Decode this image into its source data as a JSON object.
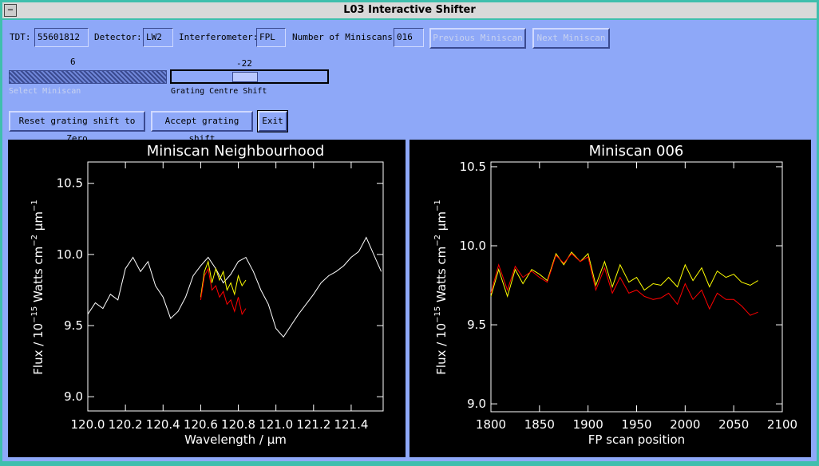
{
  "window": {
    "title": "L03 Interactive Shifter"
  },
  "controls": {
    "tdt_label": "TDT:",
    "tdt_value": "55601812",
    "detector_label": "Detector:",
    "detector_value": "LW2",
    "interferometer_label": "Interferometer:",
    "interferometer_value": "FPL",
    "miniscans_label": "Number of Miniscans:",
    "miniscans_value": "016",
    "previous_button": "Previous Miniscan",
    "next_button": "Next Miniscan",
    "select_slider_value": "6",
    "select_slider_label": "Select Miniscan",
    "shift_slider_value": "-22",
    "shift_slider_label": "Grating Centre Shift",
    "reset_button": "Reset grating shift to Zero",
    "accept_button": "Accept grating shift",
    "exit_button": "Exit"
  },
  "plots": [
    {
      "title": "Miniscan Neighbourhood",
      "x_label": "Wavelength  / μm",
      "y_label_parts": [
        "Flux  / 10",
        "−15",
        " Watts cm",
        "−2",
        " μm",
        "−1"
      ],
      "xlim": [
        120.0,
        121.57
      ],
      "ylim": [
        8.9,
        10.65
      ],
      "xticks": [
        {
          "value": 120.0,
          "label": "120.0"
        },
        120.2,
        120.4,
        120.6,
        120.8,
        {
          "value": 121.0,
          "label": "121.0"
        },
        121.2,
        121.4
      ],
      "yticks": [
        {
          "value": 9.0,
          "label": "9.0"
        },
        9.5,
        {
          "value": 10.0,
          "label": "10.0"
        },
        10.5
      ],
      "series": [
        {
          "color": "#ffffff",
          "x": [
            120.0,
            120.04,
            120.08,
            120.12,
            120.16,
            120.2,
            120.24,
            120.28,
            120.32,
            120.36,
            120.4,
            120.44,
            120.48,
            120.52,
            120.56,
            120.6,
            120.64,
            120.68,
            120.72,
            120.76,
            120.8,
            120.84,
            120.88,
            120.92,
            120.96,
            121.0,
            121.04,
            121.08,
            121.12,
            121.16,
            121.2,
            121.24,
            121.28,
            121.32,
            121.36,
            121.4,
            121.44,
            121.48,
            121.52,
            121.56
          ],
          "values": [
            9.58,
            9.66,
            9.62,
            9.72,
            9.68,
            9.9,
            9.98,
            9.88,
            9.95,
            9.78,
            9.7,
            9.55,
            9.6,
            9.7,
            9.85,
            9.92,
            9.98,
            9.9,
            9.8,
            9.86,
            9.95,
            9.98,
            9.88,
            9.75,
            9.65,
            9.48,
            9.42,
            9.5,
            9.58,
            9.65,
            9.72,
            9.8,
            9.85,
            9.88,
            9.92,
            9.98,
            10.02,
            10.12,
            10.0,
            9.88
          ]
        },
        {
          "color": "#ffff00",
          "x": [
            120.6,
            120.62,
            120.64,
            120.66,
            120.68,
            120.7,
            120.72,
            120.74,
            120.76,
            120.78,
            120.8,
            120.82,
            120.84
          ],
          "values": [
            9.7,
            9.88,
            9.95,
            9.8,
            9.9,
            9.82,
            9.88,
            9.75,
            9.8,
            9.72,
            9.85,
            9.78,
            9.82
          ]
        },
        {
          "color": "#ff0000",
          "x": [
            120.6,
            120.62,
            120.64,
            120.66,
            120.68,
            120.7,
            120.72,
            120.74,
            120.76,
            120.78,
            120.8,
            120.82,
            120.84
          ],
          "values": [
            9.68,
            9.85,
            9.9,
            9.75,
            9.78,
            9.7,
            9.74,
            9.65,
            9.68,
            9.6,
            9.7,
            9.58,
            9.62
          ]
        }
      ]
    },
    {
      "title": "Miniscan 006",
      "x_label": "FP scan position",
      "y_label_parts": [
        "Flux  / 10",
        "−15",
        " Watts cm",
        "−2",
        " μm",
        "−1"
      ],
      "xlim": [
        1800,
        2100
      ],
      "ylim": [
        8.95,
        10.53
      ],
      "xticks": [
        1800,
        1850,
        1900,
        1950,
        2000,
        2050,
        2100
      ],
      "yticks": [
        {
          "value": 9.0,
          "label": "9.0"
        },
        9.5,
        {
          "value": 10.0,
          "label": "10.0"
        },
        10.5
      ],
      "series": [
        {
          "color": "#ffff00",
          "x": [
            1800,
            1808,
            1817,
            1825,
            1833,
            1842,
            1850,
            1858,
            1867,
            1875,
            1883,
            1892,
            1900,
            1908,
            1917,
            1925,
            1933,
            1942,
            1950,
            1958,
            1967,
            1975,
            1983,
            1992,
            2000,
            2008,
            2017,
            2025,
            2033,
            2042,
            2050,
            2058,
            2067,
            2075
          ],
          "values": [
            9.68,
            9.85,
            9.68,
            9.85,
            9.76,
            9.85,
            9.82,
            9.78,
            9.95,
            9.88,
            9.96,
            9.9,
            9.95,
            9.75,
            9.9,
            9.74,
            9.88,
            9.77,
            9.8,
            9.72,
            9.76,
            9.75,
            9.8,
            9.74,
            9.88,
            9.78,
            9.86,
            9.74,
            9.84,
            9.8,
            9.82,
            9.77,
            9.75,
            9.78
          ]
        },
        {
          "color": "#ff0000",
          "x": [
            1800,
            1808,
            1817,
            1825,
            1833,
            1842,
            1850,
            1858,
            1867,
            1875,
            1883,
            1892,
            1900,
            1908,
            1917,
            1925,
            1933,
            1942,
            1950,
            1958,
            1967,
            1975,
            1983,
            1992,
            2000,
            2008,
            2017,
            2025,
            2033,
            2042,
            2050,
            2058,
            2067,
            2075
          ],
          "values": [
            9.7,
            9.88,
            9.72,
            9.87,
            9.8,
            9.84,
            9.8,
            9.77,
            9.94,
            9.89,
            9.95,
            9.9,
            9.93,
            9.72,
            9.86,
            9.7,
            9.8,
            9.7,
            9.72,
            9.68,
            9.66,
            9.67,
            9.7,
            9.63,
            9.76,
            9.66,
            9.72,
            9.6,
            9.7,
            9.66,
            9.66,
            9.62,
            9.56,
            9.58
          ]
        }
      ]
    }
  ]
}
